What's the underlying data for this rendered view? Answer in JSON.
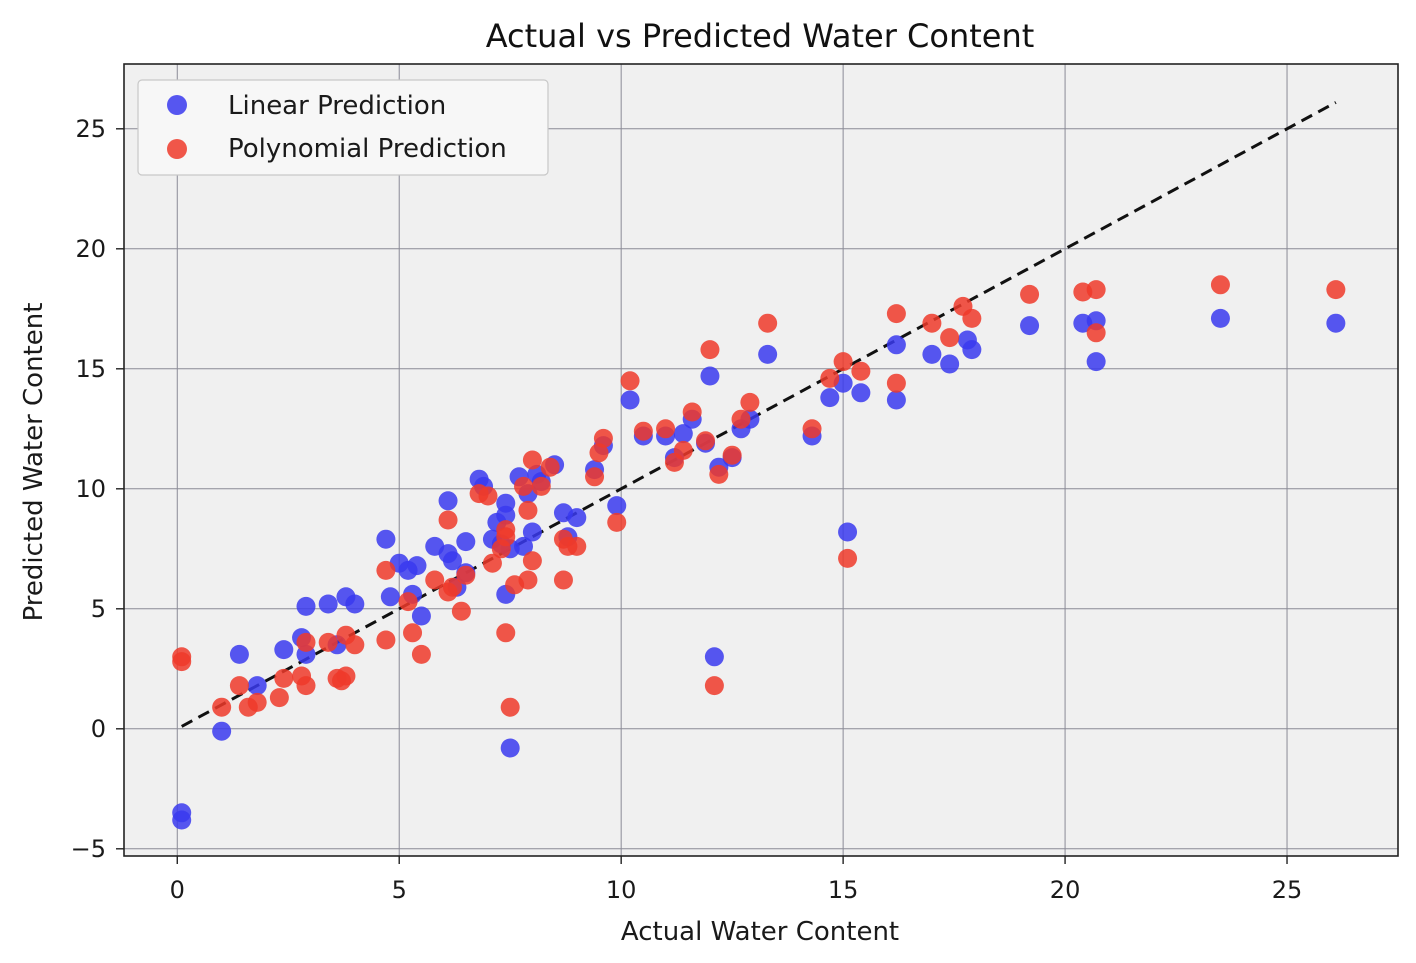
{
  "chart_data": {
    "type": "scatter",
    "title": "Actual vs Predicted Water Content",
    "xlabel": "Actual Water Content",
    "ylabel": "Predicted Water Content",
    "xlim": [
      -1.2,
      27.5
    ],
    "ylim": [
      -5.3,
      27.7
    ],
    "xticks": [
      0,
      5,
      10,
      15,
      20,
      25
    ],
    "yticks": [
      -5,
      0,
      5,
      10,
      15,
      20,
      25
    ],
    "xtick_labels": [
      "0",
      "5",
      "10",
      "15",
      "20",
      "25"
    ],
    "ytick_labels": [
      "−5",
      "0",
      "5",
      "10",
      "15",
      "20",
      "25"
    ],
    "grid": true,
    "legend_position": "upper-left",
    "reference_line": {
      "style": "dashed",
      "color": "#111111",
      "x": [
        0.1,
        26.1
      ],
      "y": [
        0.1,
        26.1
      ]
    },
    "series": [
      {
        "name": "Linear Prediction",
        "color": "#3a3aee",
        "points": [
          [
            0.1,
            -3.5
          ],
          [
            0.1,
            -3.8
          ],
          [
            1.0,
            -0.1
          ],
          [
            1.4,
            3.1
          ],
          [
            1.8,
            1.8
          ],
          [
            2.4,
            3.3
          ],
          [
            2.8,
            3.8
          ],
          [
            2.9,
            5.1
          ],
          [
            2.9,
            3.1
          ],
          [
            3.4,
            5.2
          ],
          [
            3.6,
            3.5
          ],
          [
            3.8,
            5.5
          ],
          [
            4.0,
            5.2
          ],
          [
            4.7,
            7.9
          ],
          [
            4.8,
            5.5
          ],
          [
            5.0,
            6.9
          ],
          [
            5.2,
            6.6
          ],
          [
            5.4,
            6.8
          ],
          [
            5.3,
            5.6
          ],
          [
            5.5,
            4.7
          ],
          [
            5.8,
            7.6
          ],
          [
            6.1,
            9.5
          ],
          [
            6.1,
            7.3
          ],
          [
            6.2,
            7.0
          ],
          [
            6.3,
            5.9
          ],
          [
            6.5,
            6.5
          ],
          [
            6.5,
            7.8
          ],
          [
            6.8,
            10.4
          ],
          [
            6.9,
            10.1
          ],
          [
            7.1,
            7.9
          ],
          [
            7.2,
            8.6
          ],
          [
            7.3,
            7.7
          ],
          [
            7.4,
            9.4
          ],
          [
            7.4,
            8.9
          ],
          [
            7.4,
            5.6
          ],
          [
            7.5,
            -0.8
          ],
          [
            7.5,
            7.5
          ],
          [
            7.7,
            10.5
          ],
          [
            7.8,
            7.6
          ],
          [
            7.9,
            9.8
          ],
          [
            8.0,
            8.2
          ],
          [
            8.1,
            10.6
          ],
          [
            8.2,
            10.3
          ],
          [
            8.5,
            11.0
          ],
          [
            8.7,
            9.0
          ],
          [
            8.8,
            8.0
          ],
          [
            9.0,
            8.8
          ],
          [
            9.4,
            10.8
          ],
          [
            9.6,
            11.8
          ],
          [
            9.9,
            9.3
          ],
          [
            10.2,
            13.7
          ],
          [
            10.5,
            12.2
          ],
          [
            11.0,
            12.2
          ],
          [
            11.2,
            11.3
          ],
          [
            11.4,
            12.3
          ],
          [
            11.6,
            12.9
          ],
          [
            11.9,
            11.9
          ],
          [
            12.0,
            14.7
          ],
          [
            12.1,
            3.0
          ],
          [
            12.2,
            10.9
          ],
          [
            12.5,
            11.3
          ],
          [
            12.7,
            12.5
          ],
          [
            12.9,
            12.9
          ],
          [
            13.3,
            15.6
          ],
          [
            14.3,
            12.2
          ],
          [
            14.7,
            13.8
          ],
          [
            15.0,
            14.4
          ],
          [
            15.1,
            8.2
          ],
          [
            15.4,
            14.0
          ],
          [
            16.2,
            16.0
          ],
          [
            16.2,
            13.7
          ],
          [
            17.0,
            15.6
          ],
          [
            17.4,
            15.2
          ],
          [
            17.8,
            16.2
          ],
          [
            17.9,
            15.8
          ],
          [
            19.2,
            16.8
          ],
          [
            20.4,
            16.9
          ],
          [
            20.7,
            15.3
          ],
          [
            20.7,
            17.0
          ],
          [
            23.5,
            17.1
          ],
          [
            26.1,
            16.9
          ]
        ]
      },
      {
        "name": "Polynomial Prediction",
        "color": "#ee3a2a",
        "points": [
          [
            0.1,
            3.0
          ],
          [
            0.1,
            2.8
          ],
          [
            1.0,
            0.9
          ],
          [
            1.4,
            1.8
          ],
          [
            1.6,
            0.9
          ],
          [
            1.8,
            1.1
          ],
          [
            2.3,
            1.3
          ],
          [
            2.4,
            2.1
          ],
          [
            2.8,
            2.2
          ],
          [
            2.9,
            3.6
          ],
          [
            2.9,
            1.8
          ],
          [
            3.4,
            3.6
          ],
          [
            3.6,
            2.1
          ],
          [
            3.7,
            2.0
          ],
          [
            3.8,
            3.9
          ],
          [
            3.8,
            2.2
          ],
          [
            4.0,
            3.5
          ],
          [
            4.7,
            6.6
          ],
          [
            4.7,
            3.7
          ],
          [
            5.2,
            5.3
          ],
          [
            5.3,
            4.0
          ],
          [
            5.5,
            3.1
          ],
          [
            5.8,
            6.2
          ],
          [
            6.1,
            8.7
          ],
          [
            6.1,
            5.7
          ],
          [
            6.2,
            5.9
          ],
          [
            6.4,
            4.9
          ],
          [
            6.5,
            6.4
          ],
          [
            6.8,
            9.8
          ],
          [
            7.0,
            9.7
          ],
          [
            7.1,
            6.9
          ],
          [
            7.3,
            7.5
          ],
          [
            7.4,
            8.3
          ],
          [
            7.4,
            8.0
          ],
          [
            7.4,
            4.0
          ],
          [
            7.5,
            0.9
          ],
          [
            7.6,
            6.0
          ],
          [
            7.8,
            10.1
          ],
          [
            7.9,
            6.2
          ],
          [
            7.9,
            9.1
          ],
          [
            8.0,
            7.0
          ],
          [
            8.0,
            11.2
          ],
          [
            8.2,
            10.1
          ],
          [
            8.4,
            10.9
          ],
          [
            8.7,
            6.2
          ],
          [
            8.8,
            7.6
          ],
          [
            8.7,
            7.9
          ],
          [
            9.0,
            7.6
          ],
          [
            9.4,
            10.5
          ],
          [
            9.6,
            12.1
          ],
          [
            9.5,
            11.5
          ],
          [
            9.9,
            8.6
          ],
          [
            10.2,
            14.5
          ],
          [
            10.5,
            12.4
          ],
          [
            11.0,
            12.5
          ],
          [
            11.2,
            11.1
          ],
          [
            11.4,
            11.6
          ],
          [
            11.6,
            13.2
          ],
          [
            11.9,
            12.0
          ],
          [
            12.0,
            15.8
          ],
          [
            12.1,
            1.8
          ],
          [
            12.2,
            10.6
          ],
          [
            12.5,
            11.4
          ],
          [
            12.7,
            12.9
          ],
          [
            12.9,
            13.6
          ],
          [
            13.3,
            16.9
          ],
          [
            14.3,
            12.5
          ],
          [
            14.7,
            14.6
          ],
          [
            15.0,
            15.3
          ],
          [
            15.1,
            7.1
          ],
          [
            15.4,
            14.9
          ],
          [
            16.2,
            17.3
          ],
          [
            16.2,
            14.4
          ],
          [
            17.0,
            16.9
          ],
          [
            17.4,
            16.3
          ],
          [
            17.7,
            17.6
          ],
          [
            17.9,
            17.1
          ],
          [
            19.2,
            18.1
          ],
          [
            20.4,
            18.2
          ],
          [
            20.7,
            16.5
          ],
          [
            20.7,
            18.3
          ],
          [
            23.5,
            18.5
          ],
          [
            26.1,
            18.3
          ]
        ]
      }
    ]
  }
}
